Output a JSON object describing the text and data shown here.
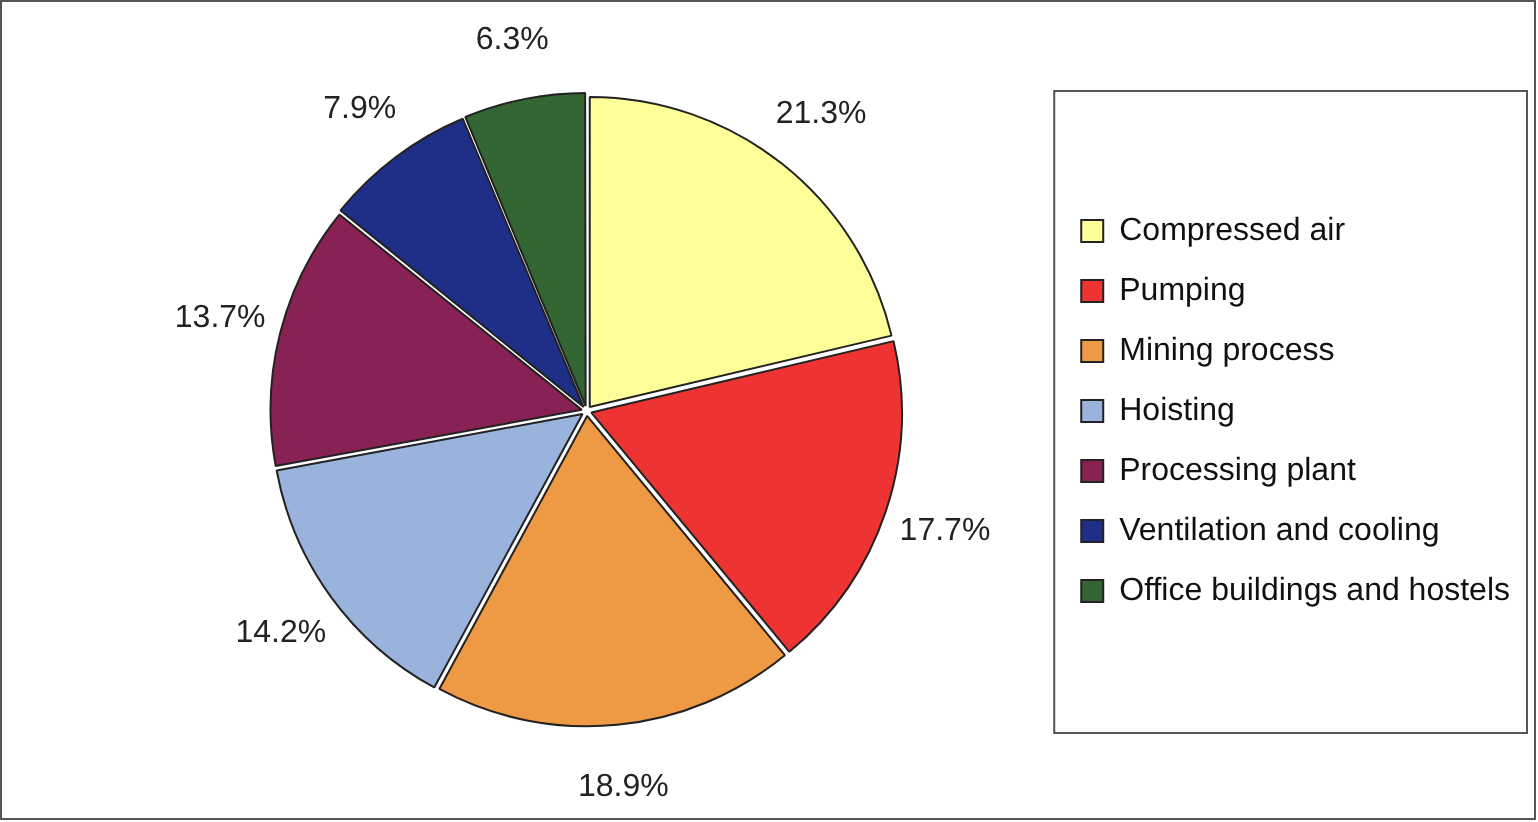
{
  "chart_data": {
    "type": "pie",
    "categories": [
      "Compressed air",
      "Pumping",
      "Mining process",
      "Hoisting",
      "Processing plant",
      "Ventilation and cooling",
      "Office buildings and hostels"
    ],
    "values": [
      21.3,
      17.7,
      18.9,
      14.2,
      13.7,
      7.9,
      6.3
    ],
    "colors": [
      "#ffff99",
      "#ee3333",
      "#ee9944",
      "#99b3dd",
      "#882255",
      "#1f2f88",
      "#336633"
    ],
    "value_labels": [
      "21.3%",
      "17.7%",
      "18.9%",
      "14.2%",
      "13.7%",
      "7.9%",
      "6.3%"
    ],
    "legend": "right"
  }
}
